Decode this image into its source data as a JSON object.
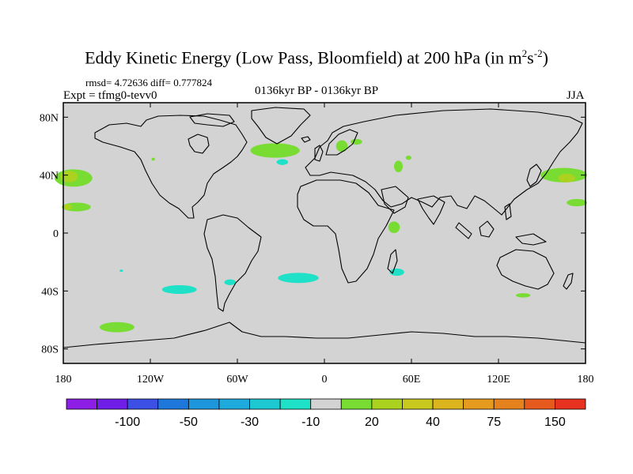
{
  "title": {
    "text": "Eddy Kinetic Energy (Low Pass, Bloomfield) at 200 hPa (in m",
    "exp1": "2",
    "mid": "s",
    "exp2": "-2",
    "end": ")"
  },
  "stats": "rmsd= 4.72636 diff= 0.777824",
  "expt": "Expt = tfmg0-tevv0",
  "period": "0136kyr BP - 0136kyr BP",
  "season": "JJA",
  "map": {
    "lon_ticks": [
      {
        "lon": -180,
        "label": "180"
      },
      {
        "lon": -120,
        "label": "120W"
      },
      {
        "lon": -60,
        "label": "60W"
      },
      {
        "lon": 0,
        "label": "0"
      },
      {
        "lon": 60,
        "label": "60E"
      },
      {
        "lon": 120,
        "label": "120E"
      },
      {
        "lon": 180,
        "label": "180"
      }
    ],
    "lat_ticks": [
      {
        "lat": 80,
        "label": "80N"
      },
      {
        "lat": 40,
        "label": "40N"
      },
      {
        "lat": 0,
        "label": "0"
      },
      {
        "lat": -40,
        "label": "40S"
      },
      {
        "lat": -80,
        "label": "80S"
      }
    ],
    "ocean_color": "#d3d3d3",
    "land_outline_color": "#000000",
    "anomalies": [
      {
        "lon": -173,
        "lat": 38,
        "rx_deg": 13,
        "ry_deg": 6,
        "color": "#78dc32",
        "level": 20
      },
      {
        "lon": -176,
        "lat": 39,
        "rx_deg": 6,
        "ry_deg": 4,
        "color": "#aad21e",
        "level": 30
      },
      {
        "lon": -171,
        "lat": 18,
        "rx_deg": 10,
        "ry_deg": 3,
        "color": "#78dc32",
        "level": 20
      },
      {
        "lon": -177,
        "lat": 18,
        "rx_deg": 3,
        "ry_deg": 2,
        "color": "#aad21e",
        "level": 30
      },
      {
        "lon": -34,
        "lat": 57,
        "rx_deg": 17,
        "ry_deg": 5,
        "color": "#78dc32",
        "level": 20
      },
      {
        "lon": -29,
        "lat": 49,
        "rx_deg": 4,
        "ry_deg": 2,
        "color": "#1ee1c8",
        "level": -10
      },
      {
        "lon": 12,
        "lat": 60,
        "rx_deg": 4,
        "ry_deg": 4,
        "color": "#78dc32",
        "level": 20
      },
      {
        "lon": 22,
        "lat": 63,
        "rx_deg": 4,
        "ry_deg": 2,
        "color": "#78dc32",
        "level": 20
      },
      {
        "lon": 51,
        "lat": 46,
        "rx_deg": 3,
        "ry_deg": 4,
        "color": "#78dc32",
        "level": 20
      },
      {
        "lon": 58,
        "lat": 52,
        "rx_deg": 2,
        "ry_deg": 1.5,
        "color": "#78dc32",
        "level": 20
      },
      {
        "lon": 48,
        "lat": 4,
        "rx_deg": 4,
        "ry_deg": 4,
        "color": "#78dc32",
        "level": 20
      },
      {
        "lon": 50,
        "lat": -27,
        "rx_deg": 5,
        "ry_deg": 2.5,
        "color": "#1ee1c8",
        "level": -10
      },
      {
        "lon": -18,
        "lat": -31,
        "rx_deg": 14,
        "ry_deg": 3.5,
        "color": "#1ee1c8",
        "level": -10
      },
      {
        "lon": -65,
        "lat": -34,
        "rx_deg": 4,
        "ry_deg": 2,
        "color": "#1ee1c8",
        "level": -10
      },
      {
        "lon": -100,
        "lat": -39,
        "rx_deg": 12,
        "ry_deg": 3,
        "color": "#1ee1c8",
        "level": -10
      },
      {
        "lon": -143,
        "lat": -65,
        "rx_deg": 12,
        "ry_deg": 3.5,
        "color": "#78dc32",
        "level": 20
      },
      {
        "lon": 165,
        "lat": 40,
        "rx_deg": 16,
        "ry_deg": 5,
        "color": "#78dc32",
        "level": 20
      },
      {
        "lon": 167,
        "lat": 38,
        "rx_deg": 6,
        "ry_deg": 3,
        "color": "#aad21e",
        "level": 30
      },
      {
        "lon": 174,
        "lat": 21,
        "rx_deg": 7,
        "ry_deg": 2.5,
        "color": "#78dc32",
        "level": 20
      },
      {
        "lon": 137,
        "lat": -43,
        "rx_deg": 5,
        "ry_deg": 1.5,
        "color": "#78dc32",
        "level": 20
      },
      {
        "lon": -118,
        "lat": 51,
        "rx_deg": 1.2,
        "ry_deg": 1,
        "color": "#78dc32",
        "level": 20
      },
      {
        "lon": -140,
        "lat": -26,
        "rx_deg": 1.2,
        "ry_deg": 0.8,
        "color": "#1ee1c8",
        "level": -10
      }
    ]
  },
  "colorbar": {
    "colors": [
      "#8c1ee6",
      "#6e1ee6",
      "#3c50e6",
      "#1e78dc",
      "#1e96dc",
      "#1eaadc",
      "#1ec8d2",
      "#1ee1c8",
      "#d3d3d3",
      "#78dc32",
      "#aad21e",
      "#c8c81e",
      "#dcb41e",
      "#e69b1e",
      "#e6821e",
      "#e65a1e",
      "#e6321e"
    ],
    "labels": [
      "-100",
      "-50",
      "-30",
      "-10",
      "20",
      "40",
      "75",
      "150"
    ],
    "label_boundaries": [
      2,
      4,
      6,
      8,
      10,
      12,
      14,
      16
    ]
  }
}
